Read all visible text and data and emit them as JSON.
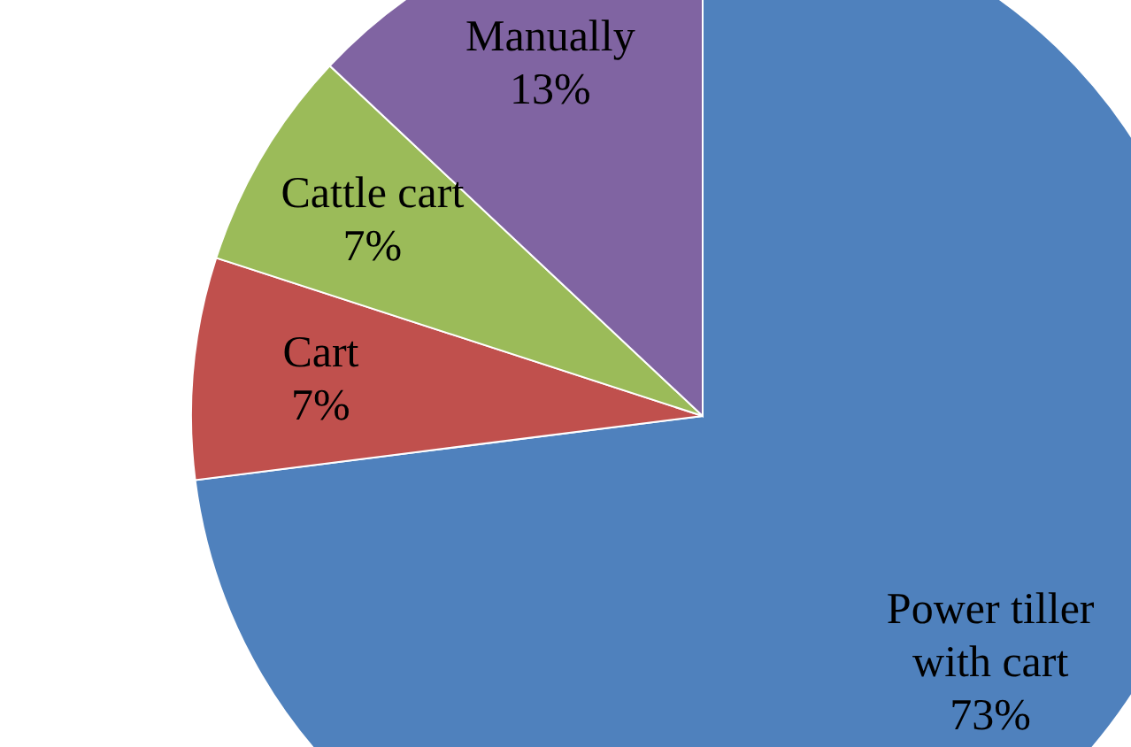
{
  "chart_data": {
    "type": "pie",
    "categories": [
      "Power tiller with cart",
      "Cart",
      "Cattle cart",
      "Manually"
    ],
    "values": [
      73,
      7,
      7,
      13
    ],
    "colors": [
      "#4f81bd",
      "#c0504d",
      "#9bbb59",
      "#8064a2"
    ],
    "value_labels": [
      "73%",
      "7%",
      "7%",
      "13%"
    ]
  }
}
